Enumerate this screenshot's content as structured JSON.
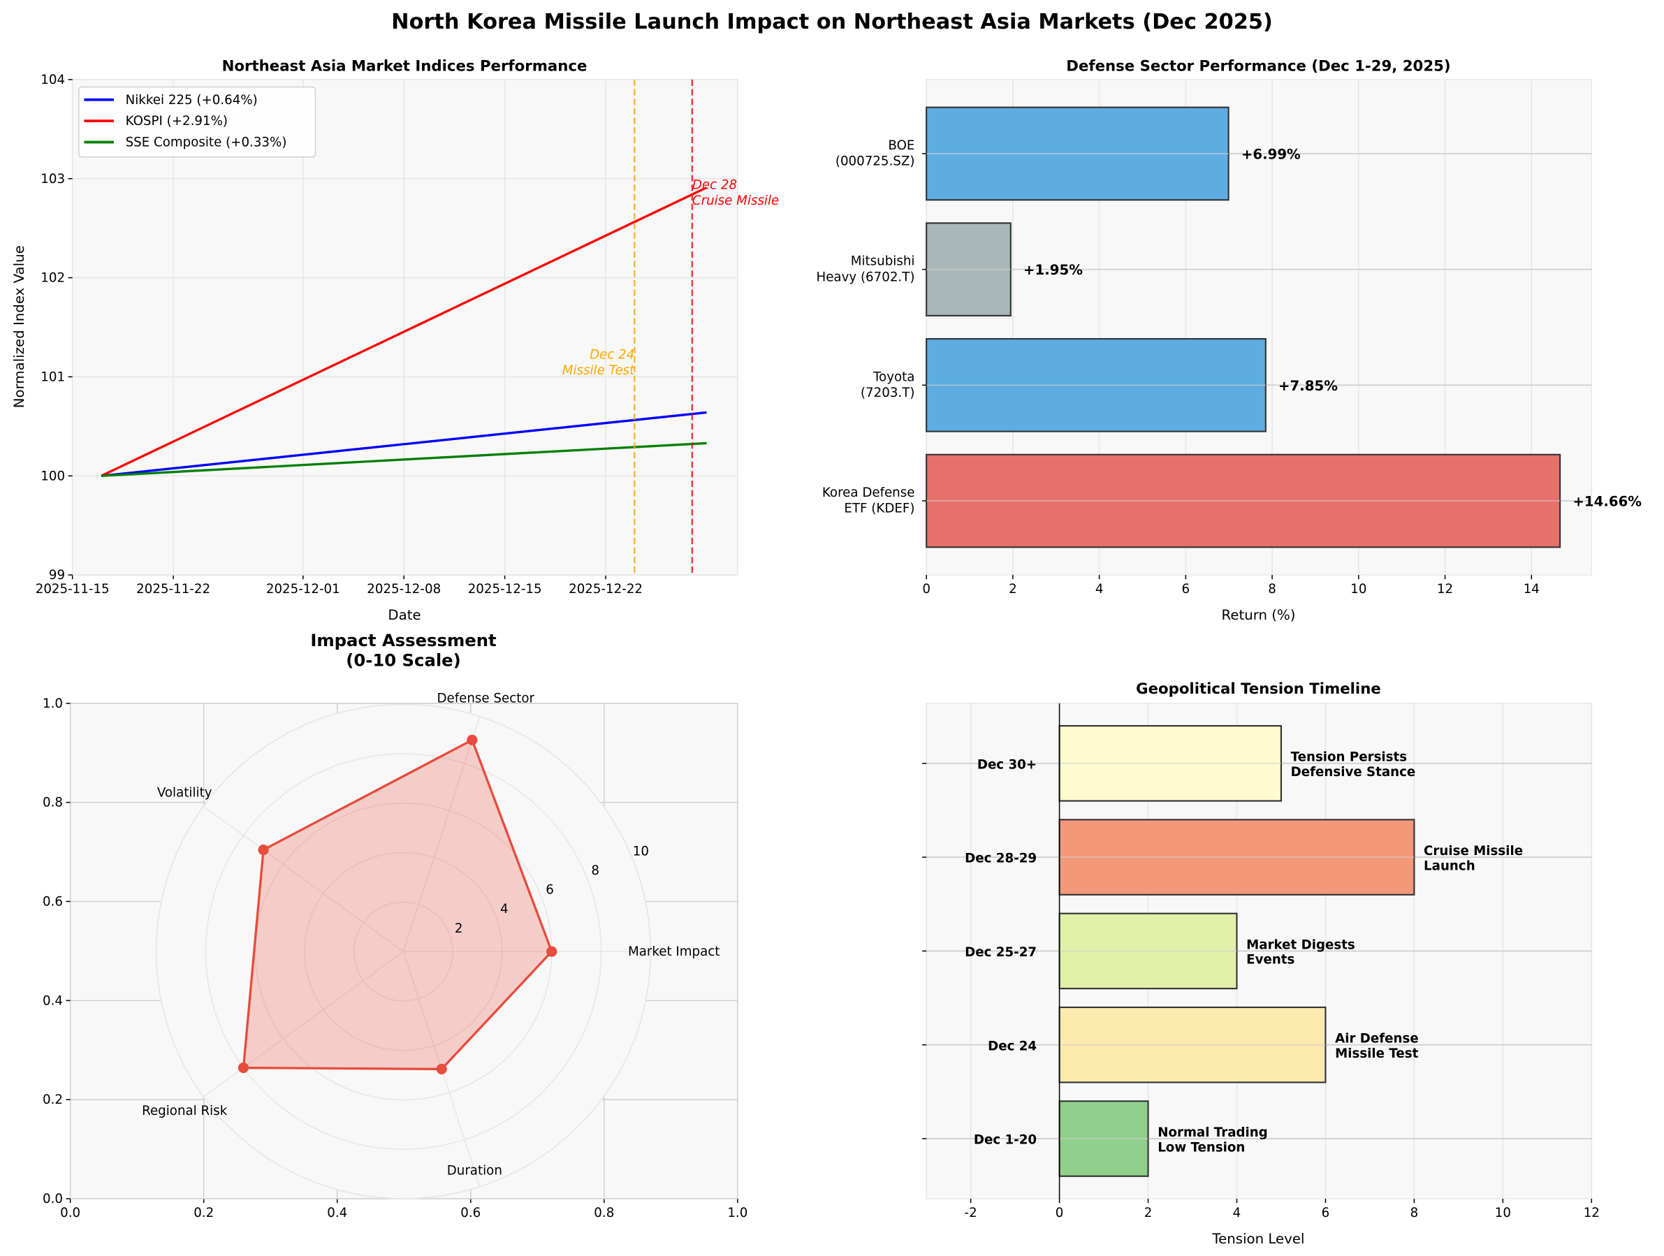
{
  "title": "North Korea Missile Launch Impact on Northeast Asia Markets (Dec 2025)",
  "chart_data": [
    {
      "type": "line",
      "title": "Northeast Asia Market Indices Performance",
      "xlabel": "Date",
      "ylabel": "Normalized Index Value",
      "xlim": [
        "2025-11-15",
        "2025-12-31"
      ],
      "ylim": [
        99,
        104
      ],
      "xticks": [
        "2025-11-15",
        "2025-11-22",
        "2025-12-01",
        "2025-12-08",
        "2025-12-15",
        "2025-12-22"
      ],
      "yticks": [
        99,
        100,
        101,
        102,
        103,
        104
      ],
      "grid": true,
      "legend": "top-left",
      "x": [
        "2025-11-17",
        "2025-12-29"
      ],
      "series": [
        {
          "name": "Nikkei 225 (+0.64%)",
          "color": "#0000ff",
          "values": [
            100,
            100.64
          ]
        },
        {
          "name": "KOSPI (+2.91%)",
          "color": "#ff0000",
          "values": [
            100,
            102.91
          ]
        },
        {
          "name": "SSE Composite (+0.33%)",
          "color": "#008000",
          "values": [
            100,
            100.33
          ]
        }
      ],
      "events": [
        {
          "date": "2025-12-24",
          "label": [
            "Dec 24",
            "Missile Test"
          ],
          "color": "#ffa500"
        },
        {
          "date": "2025-12-28",
          "label": [
            "Dec 28",
            "Cruise Missile"
          ],
          "color": "#ff0000"
        }
      ]
    },
    {
      "type": "bar",
      "orientation": "horizontal",
      "title": "Defense Sector Performance (Dec 1-29, 2025)",
      "xlabel": "Return (%)",
      "xlim": [
        0,
        15.39
      ],
      "xticks": [
        0,
        2,
        4,
        6,
        8,
        10,
        12,
        14
      ],
      "grid": true,
      "categories": [
        [
          "Korea Defense",
          "ETF (KDEF)"
        ],
        [
          "Toyota",
          "(7203.T)"
        ],
        [
          "Mitsubishi",
          "Heavy (6702.T)"
        ],
        [
          "BOE",
          "(000725.SZ)"
        ]
      ],
      "values": [
        14.66,
        7.85,
        1.95,
        6.99
      ],
      "data_labels": [
        "+14.66%",
        "+7.85%",
        "+1.95%",
        "+6.99%"
      ],
      "colors": [
        "#e8706a",
        "#5dade2",
        "#aab7b8",
        "#5dade2"
      ]
    },
    {
      "type": "radar",
      "title": [
        "Impact Assessment",
        "(0-10 Scale)"
      ],
      "categories": [
        "Market Impact",
        "Defense Sector",
        "Volatility",
        "Regional Risk",
        "Duration"
      ],
      "values": [
        6,
        9,
        7,
        8,
        5
      ],
      "rlim": [
        0,
        10
      ],
      "rticks": [
        2,
        4,
        6,
        8,
        10
      ],
      "color": "#e74c3c",
      "background_xticks": [
        "0.0",
        "0.2",
        "0.4",
        "0.6",
        "0.8",
        "1.0"
      ],
      "background_yticks": [
        "0.0",
        "0.2",
        "0.4",
        "0.6",
        "0.8",
        "1.0"
      ]
    },
    {
      "type": "bar",
      "orientation": "horizontal",
      "title": "Geopolitical Tension Timeline",
      "xlabel": "Tension Level",
      "xlim": [
        -3,
        12
      ],
      "xticks": [
        -2,
        0,
        2,
        4,
        6,
        8,
        10,
        12
      ],
      "grid": true,
      "categories": [
        "Dec 1-20",
        "Dec 24",
        "Dec 25-27",
        "Dec 28-29",
        "Dec 30+"
      ],
      "values": [
        2,
        6,
        4,
        8,
        5
      ],
      "data_labels": [
        [
          "Normal Trading",
          "Low Tension"
        ],
        [
          "Air Defense",
          "Missile Test"
        ],
        [
          "Market Digests",
          "Events"
        ],
        [
          "Cruise Missile",
          "Launch"
        ],
        [
          "Tension Persists",
          "Defensive Stance"
        ]
      ],
      "colors": [
        "#90d08c",
        "#fce9ae",
        "#e1f0a9",
        "#f4987a",
        "#fdfbcf"
      ]
    }
  ]
}
